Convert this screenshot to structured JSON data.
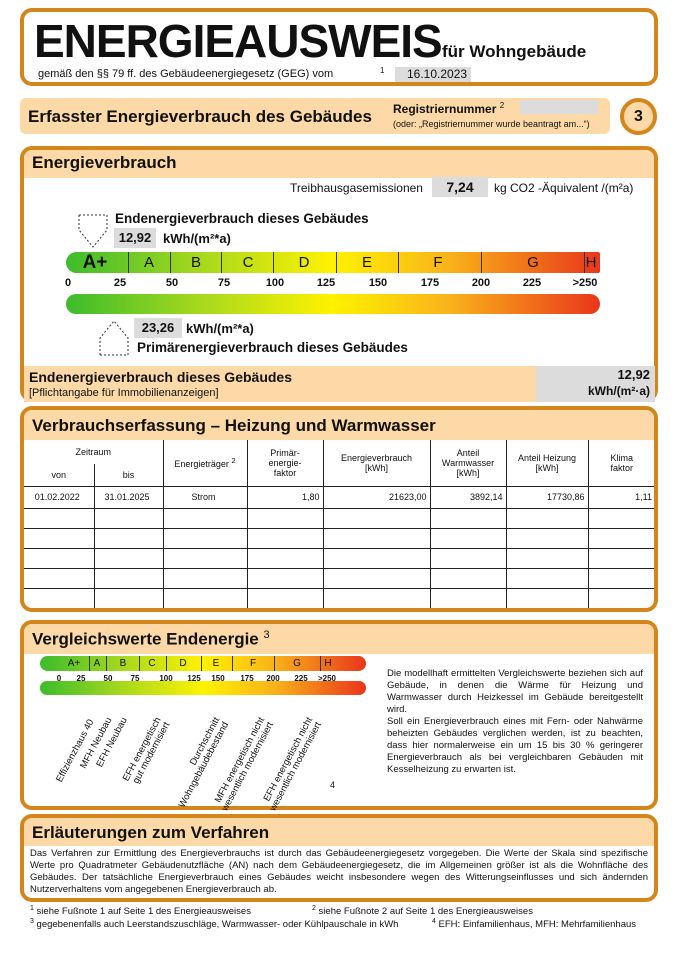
{
  "header": {
    "title": "ENERGIEAUSWEIS",
    "subtitle": "für Wohngebäude",
    "law": "gemäß den §§ 79 ff. des Gebäudeenergiegesetz (GEG) vom",
    "law_note": "1",
    "date": "16.10.2023"
  },
  "section": {
    "title": "Erfasster Energieverbrauch des Gebäudes",
    "reg_label": "Registriernummer",
    "reg_note": "2",
    "reg_value": "",
    "reg_hint": "(oder: „Registriernummer wurde beantragt am...“)",
    "page": "3"
  },
  "verbrauch": {
    "title": "Energieverbrauch",
    "ghg_label": "Treibhausgasemissionen",
    "ghg_value": "7,24",
    "ghg_unit": "kg CO2 -Äquivalent /(m²a)",
    "end_label": "Endenergieverbrauch dieses Gebäudes",
    "end_value": "12,92",
    "end_unit": "kWh/(m²*a)",
    "prim_label": "Primärenergieverbrauch dieses Gebäudes",
    "prim_value": "23,26",
    "prim_unit": "kWh/(m²*a)",
    "classes": [
      "A+",
      "A",
      "B",
      "C",
      "D",
      "E",
      "F",
      "G",
      "H"
    ],
    "ticks": [
      "0",
      "25",
      "50",
      "75",
      "100",
      "125",
      "150",
      "175",
      "200",
      "225",
      ">250"
    ],
    "colors": {
      "border": "#d4861c",
      "peach": "#fcd9a6",
      "green": "#3cbc2c",
      "yellow": "#fff200",
      "red": "#e9361b"
    }
  },
  "summary": {
    "title": "Endenergieverbrauch dieses Gebäudes",
    "note": "[Pflichtangabe für Immobilienanzeigen]",
    "value": "12,92",
    "unit": "kWh/(m²·a)"
  },
  "erfassung": {
    "title": "Verbrauchserfassung – Heizung und Warmwasser",
    "headers": {
      "zeitraum": "Zeitraum",
      "von": "von",
      "bis": "bis",
      "traeger": "Energieträger",
      "traeger_note": "2",
      "faktor": "Primär-\nenergie-\nfaktor",
      "verbrauch": "Energieverbrauch\n[kWh]",
      "warmwasser": "Anteil\nWarmwasser\n[kWh]",
      "heizung": "Anteil Heizung\n[kWh]",
      "klima": "Klima\nfaktor"
    },
    "rows": [
      [
        "01.02.2022",
        "31.01.2025",
        "Strom",
        "1,80",
        "21623,00",
        "3892,14",
        "17730,86",
        "1,11"
      ],
      [
        "",
        "",
        "",
        "",
        "",
        "",
        "",
        ""
      ],
      [
        "",
        "",
        "",
        "",
        "",
        "",
        "",
        ""
      ],
      [
        "",
        "",
        "",
        "",
        "",
        "",
        "",
        ""
      ],
      [
        "",
        "",
        "",
        "",
        "",
        "",
        "",
        ""
      ],
      [
        "",
        "",
        "",
        "",
        "",
        "",
        "",
        ""
      ]
    ]
  },
  "vergleich": {
    "title": "Vergleichswerte Endenergie",
    "note": "3",
    "refs": [
      [
        "Effizienzhaus 40",
        ""
      ],
      [
        "MFH Neubau",
        ""
      ],
      [
        "EFH Neubau",
        ""
      ],
      [
        "EFH energetisch",
        "gut modernisiert"
      ],
      [
        "Durchschnitt",
        "Wohngebäudebestand"
      ],
      [
        "MFH energetisch nicht",
        "wesentlich modernisiert"
      ],
      [
        "EFH energetisch nicht",
        "wesentlich modernisiert"
      ]
    ],
    "refs_note": "4",
    "text1": "Die modellhaft ermittelten Vergleichswerte beziehen sich auf Gebäude, in denen die Wärme für Heizung und Warmwasser durch Heizkessel im Gebäude bereitgestellt wird.",
    "text2": "Soll ein Energieverbrauch eines mit Fern- oder Nahwärme beheizten Gebäudes verglichen werden, ist zu beachten, dass hier normalerweise ein um 15 bis 30 % geringerer Energieverbrauch als bei vergleichbaren Gebäuden mit Kesselheizung zu erwarten ist."
  },
  "erlaeuterung": {
    "title": "Erläuterungen zum Verfahren",
    "text": "Das Verfahren zur Ermittlung des Energieverbrauchs ist durch das Gebäudeenergiegesetz vorgegeben. Die Werte der Skala sind spezifische Werte pro Quadratmeter Gebäudenutzfläche (AN) nach dem Gebäudeenergiegesetz, die im Allgemeinen größer ist als die Wohnfläche des Gebäudes. Der tatsächliche Energieverbrauch eines Gebäudes weicht insbesondere wegen des Witterungseinflusses und sich ändernden Nutzerverhaltens vom angegebenen Energieverbrauch ab."
  },
  "footnotes": [
    {
      "n": "1",
      "t": "siehe Fußnote 1 auf Seite 1 des Energieausweises"
    },
    {
      "n": "2",
      "t": "siehe Fußnote 2 auf Seite 1 des Energieausweises"
    },
    {
      "n": "3",
      "t": "gegebenenfalls auch Leerstandszuschläge, Warmwasser- oder Kühlpauschale in kWh"
    },
    {
      "n": "4",
      "t": "EFH: Einfamilienhaus, MFH: Mehrfamilienhaus"
    }
  ]
}
